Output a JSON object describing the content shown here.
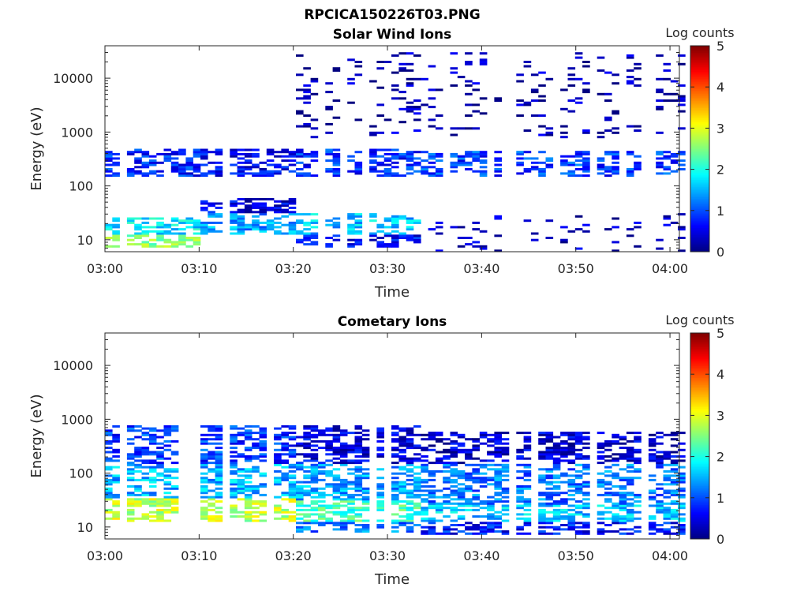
{
  "figure_title": "RPCICA150226T03.PNG",
  "chart_data": [
    {
      "type": "heatmap",
      "title": "Solar Wind Ions",
      "xlabel": "Time",
      "ylabel": "Energy (eV)",
      "x_ticks": [
        "03:00",
        "03:10",
        "03:20",
        "03:30",
        "03:40",
        "03:50",
        "04:00"
      ],
      "x_range": [
        "03:00",
        "04:01"
      ],
      "y_scale": "log",
      "y_ticks": [
        10,
        100,
        1000,
        10000
      ],
      "y_tick_labels": [
        "10",
        "100",
        "1000",
        "10000"
      ],
      "y_range": [
        6,
        40000
      ],
      "colorbar": {
        "label": "Log counts",
        "ticks": [
          "0",
          "1",
          "2",
          "3",
          "4",
          "5"
        ],
        "range": [
          0,
          5
        ],
        "colormap": "jet"
      },
      "blocks": [
        {
          "t0": 0,
          "t1": 9.5,
          "e0": 7,
          "e1": 12,
          "v": 2.5
        },
        {
          "t0": 0,
          "t1": 9.5,
          "e0": 12,
          "e1": 25,
          "v": 1.8
        },
        {
          "t0": 0,
          "t1": 9.5,
          "e0": 150,
          "e1": 500,
          "v": 0.8
        },
        {
          "t0": 9.5,
          "t1": 20,
          "e0": 12,
          "e1": 30,
          "v": 1.4
        },
        {
          "t0": 9.5,
          "t1": 20,
          "e0": 30,
          "e1": 60,
          "v": 0.5
        },
        {
          "t0": 9.5,
          "t1": 20,
          "e0": 150,
          "e1": 500,
          "v": 0.6
        },
        {
          "t0": 20,
          "t1": 33,
          "e0": 7,
          "e1": 12,
          "v": 0.6
        },
        {
          "t0": 20,
          "t1": 33,
          "e0": 12,
          "e1": 30,
          "v": 1.6
        },
        {
          "t0": 20,
          "t1": 33,
          "e0": 150,
          "e1": 500,
          "v": 0.8
        },
        {
          "t0": 33,
          "t1": 61,
          "e0": 6,
          "e1": 30,
          "v": 0.3
        },
        {
          "t0": 33,
          "t1": 61,
          "e0": 150,
          "e1": 450,
          "v": 0.9
        },
        {
          "t0": 20,
          "t1": 61,
          "e0": 800,
          "e1": 30000,
          "v": 0.2
        }
      ]
    },
    {
      "type": "heatmap",
      "title": "Cometary Ions",
      "xlabel": "Time",
      "ylabel": "Energy (eV)",
      "x_ticks": [
        "03:00",
        "03:10",
        "03:20",
        "03:30",
        "03:40",
        "03:50",
        "04:00"
      ],
      "x_range": [
        "03:00",
        "04:01"
      ],
      "y_scale": "log",
      "y_ticks": [
        10,
        100,
        1000,
        10000
      ],
      "y_tick_labels": [
        "10",
        "100",
        "1000",
        "10000"
      ],
      "y_range": [
        6,
        40000
      ],
      "colorbar": {
        "label": "Log counts",
        "ticks": [
          "0",
          "1",
          "2",
          "3",
          "4",
          "5"
        ],
        "range": [
          0,
          5
        ],
        "colormap": "jet"
      },
      "blocks": [
        {
          "t0": 0,
          "t1": 20,
          "e0": 12,
          "e1": 35,
          "v": 2.8
        },
        {
          "t0": 0,
          "t1": 20,
          "e0": 35,
          "e1": 150,
          "v": 1.5
        },
        {
          "t0": 0,
          "t1": 20,
          "e0": 150,
          "e1": 800,
          "v": 0.9
        },
        {
          "t0": 20,
          "t1": 33,
          "e0": 8,
          "e1": 12,
          "v": 1.2
        },
        {
          "t0": 20,
          "t1": 33,
          "e0": 12,
          "e1": 30,
          "v": 2.2
        },
        {
          "t0": 20,
          "t1": 33,
          "e0": 30,
          "e1": 150,
          "v": 1.4
        },
        {
          "t0": 20,
          "t1": 33,
          "e0": 150,
          "e1": 800,
          "v": 0.5
        },
        {
          "t0": 33,
          "t1": 61,
          "e0": 7,
          "e1": 12,
          "v": 0.7
        },
        {
          "t0": 33,
          "t1": 61,
          "e0": 12,
          "e1": 25,
          "v": 1.6
        },
        {
          "t0": 33,
          "t1": 61,
          "e0": 25,
          "e1": 150,
          "v": 1.2
        },
        {
          "t0": 33,
          "t1": 61,
          "e0": 150,
          "e1": 600,
          "v": 0.4
        }
      ]
    }
  ]
}
